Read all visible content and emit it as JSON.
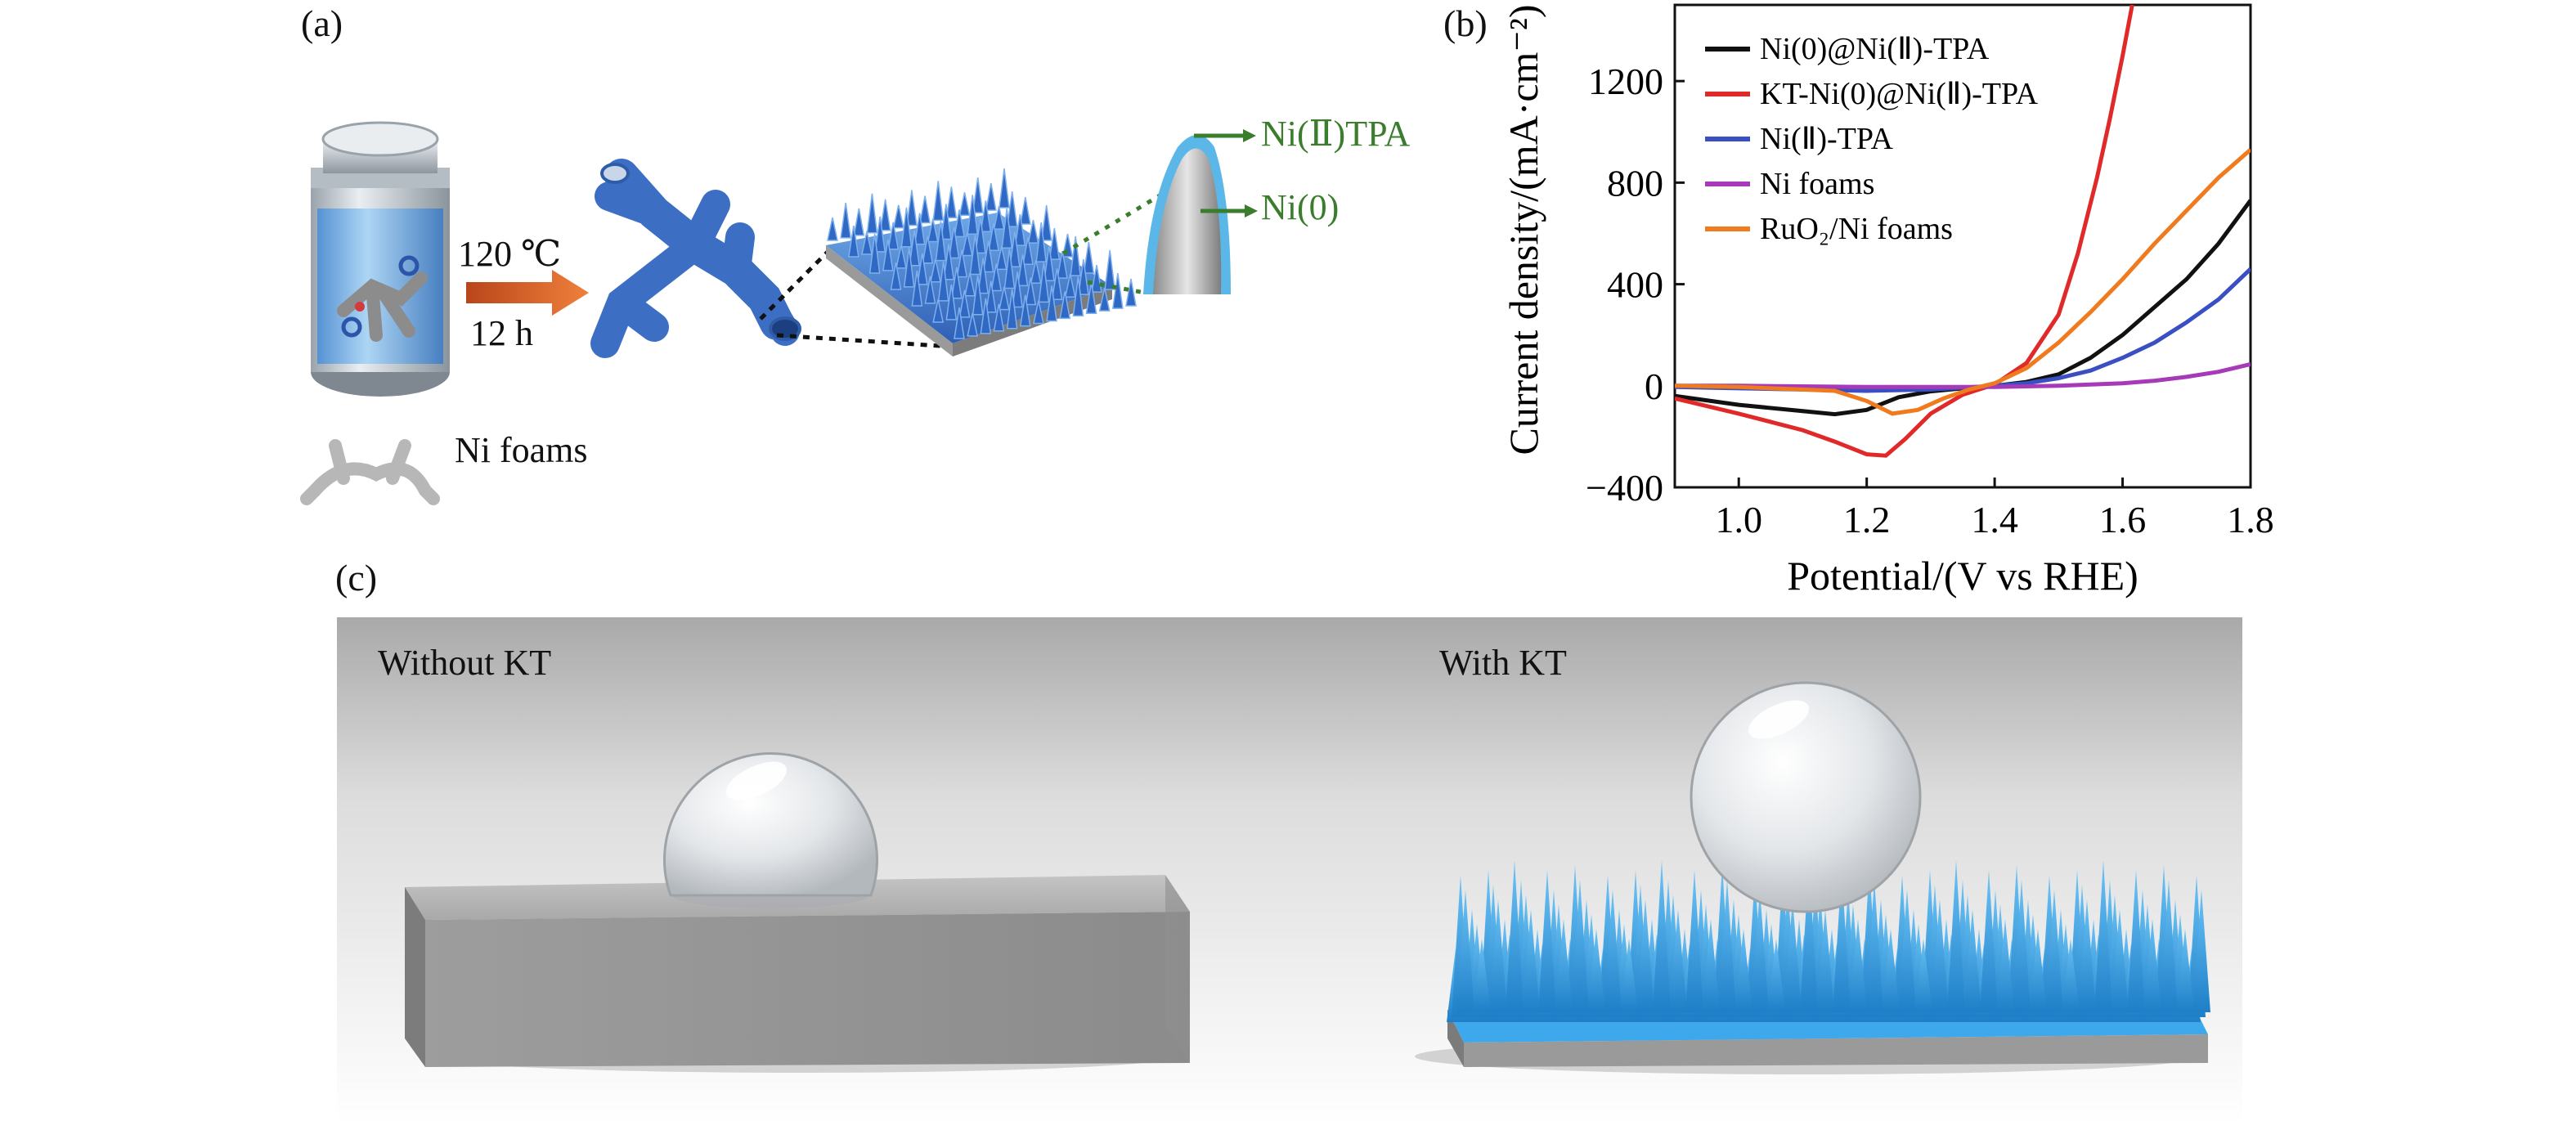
{
  "panel_a": {
    "label": "(a)",
    "temperature": "120 ℃",
    "time": "12 h",
    "substrate_label": "Ni foams",
    "shell_label": "Ni(Ⅱ)TPA",
    "core_label": "Ni(0)"
  },
  "panel_b": {
    "label": "(b)"
  },
  "panel_c": {
    "label": "(c)",
    "left_label": "Without KT",
    "right_label": "With KT"
  },
  "colors": {
    "accent_green": "#3a7d2c",
    "arrow_orange": "#e0662a",
    "kt_blue": "#2f9be0"
  },
  "chart_data": {
    "type": "line",
    "title": "",
    "xlabel": "Potential/(V vs RHE)",
    "ylabel": "Current density/(mA·cm⁻²)",
    "xlim": [
      0.9,
      1.8
    ],
    "ylim": [
      -400,
      1500
    ],
    "xticks": [
      "1.0",
      "1.2",
      "1.4",
      "1.6",
      "1.8"
    ],
    "yticks": [
      "−400",
      "0",
      "400",
      "800",
      "1200"
    ],
    "legend_position": "top-left inside",
    "series": [
      {
        "name": "Ni(0)@Ni(Ⅱ)-TPA",
        "color": "#111111",
        "x": [
          0.9,
          1.0,
          1.1,
          1.15,
          1.2,
          1.25,
          1.3,
          1.35,
          1.4,
          1.45,
          1.5,
          1.55,
          1.6,
          1.65,
          1.7,
          1.75,
          1.8
        ],
        "y": [
          -40,
          -75,
          -100,
          -112,
          -95,
          -45,
          -22,
          -10,
          0,
          15,
          45,
          110,
          200,
          310,
          420,
          560,
          730
        ]
      },
      {
        "name": "KT-Ni(0)@Ni(Ⅱ)-TPA",
        "color": "#e02a2a",
        "x": [
          0.9,
          1.0,
          1.1,
          1.15,
          1.2,
          1.23,
          1.26,
          1.3,
          1.35,
          1.4,
          1.45,
          1.5,
          1.53,
          1.56,
          1.58,
          1.6,
          1.615
        ],
        "y": [
          -50,
          -110,
          -175,
          -220,
          -270,
          -275,
          -210,
          -110,
          -35,
          5,
          90,
          280,
          520,
          820,
          1050,
          1300,
          1500
        ]
      },
      {
        "name": "Ni(Ⅱ)-TPA",
        "color": "#3a4fc2",
        "x": [
          0.9,
          1.0,
          1.1,
          1.2,
          1.3,
          1.4,
          1.45,
          1.5,
          1.55,
          1.6,
          1.65,
          1.7,
          1.75,
          1.8
        ],
        "y": [
          -5,
          -10,
          -15,
          -20,
          -15,
          0,
          10,
          30,
          60,
          110,
          170,
          250,
          340,
          460
        ]
      },
      {
        "name": "Ni foams",
        "color": "#a63ab8",
        "x": [
          0.9,
          1.0,
          1.2,
          1.4,
          1.5,
          1.6,
          1.65,
          1.7,
          1.75,
          1.8
        ],
        "y": [
          0,
          0,
          -5,
          -5,
          0,
          10,
          20,
          35,
          55,
          85
        ]
      },
      {
        "name": "RuO₂/Ni foams",
        "color": "#f07a1e",
        "x": [
          0.9,
          1.0,
          1.1,
          1.15,
          1.2,
          1.24,
          1.28,
          1.32,
          1.36,
          1.4,
          1.45,
          1.5,
          1.55,
          1.6,
          1.65,
          1.7,
          1.75,
          1.8
        ],
        "y": [
          0,
          -5,
          -15,
          -20,
          -60,
          -110,
          -95,
          -50,
          -15,
          10,
          70,
          170,
          290,
          420,
          560,
          690,
          820,
          930
        ]
      }
    ]
  }
}
